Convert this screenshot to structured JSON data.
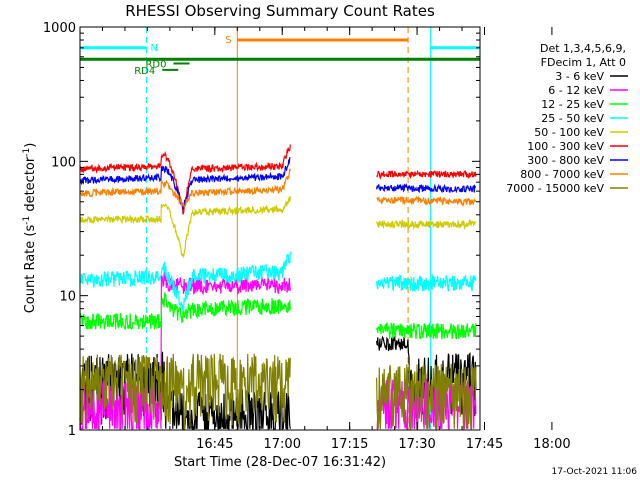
{
  "chart_data": {
    "type": "line",
    "title": "RHESSI Observing Summary Count Rates",
    "xlabel": "Start Time (28-Dec-07 16:31:42)",
    "ylabel_prefix": "Count Rate (s",
    "ylabel_sup1": "-1",
    "ylabel_mid": " detector",
    "ylabel_sup2": "-1",
    "ylabel_suffix": ")",
    "y_scale": "log",
    "ylim": [
      1,
      1000
    ],
    "xlim_min": [
      16.5,
      105.5
    ],
    "x_ticks": [
      {
        "min": 30,
        "label": "16:45"
      },
      {
        "min": 45,
        "label": "17:00"
      },
      {
        "min": 60,
        "label": "17:15"
      },
      {
        "min": 75,
        "label": "17:30"
      },
      {
        "min": 90,
        "label": "17:45"
      },
      {
        "min": 105,
        "label": "18:00"
      }
    ],
    "y_ticks": [
      {
        "value": 1,
        "label": "1"
      },
      {
        "value": 10,
        "label": "10"
      },
      {
        "value": 100,
        "label": "100"
      },
      {
        "value": 1000,
        "label": "1000"
      }
    ],
    "legend_header": [
      "Det 1,3,4,5,6,9,",
      "FDecim 1, Att 0"
    ],
    "series": [
      {
        "name": "3 - 6 keV",
        "color": "#000000",
        "values": [
          [
            0,
            2.4
          ],
          [
            18,
            2.4
          ],
          [
            18.5,
            3.0
          ],
          [
            19,
            1.3
          ],
          [
            47,
            1.3
          ],
          [
            47.5,
            2.4
          ],
          [
            47.8,
            4.5
          ],
          [
            73,
            4.5
          ],
          [
            73.5,
            2.0
          ],
          [
            77,
            2.4
          ],
          [
            88,
            2.4
          ]
        ]
      },
      {
        "name": "6 - 12 keV",
        "color": "#ff00ff",
        "values": [
          [
            0,
            1.5
          ],
          [
            18,
            1.5
          ],
          [
            18.1,
            13
          ],
          [
            19,
            14
          ],
          [
            19.5,
            12
          ],
          [
            47,
            12
          ],
          [
            47.5,
            13.5
          ],
          [
            48.5,
            14
          ],
          [
            49.5,
            12
          ],
          [
            52,
            1.5
          ],
          [
            62,
            1.5
          ],
          [
            64,
            1.6
          ],
          [
            88,
            1.6
          ]
        ]
      },
      {
        "name": "12 - 25 keV",
        "color": "#00ff00",
        "values": [
          [
            0,
            6.5
          ],
          [
            18,
            6.5
          ],
          [
            18.1,
            9
          ],
          [
            19,
            9.5
          ],
          [
            19.5,
            8.5
          ],
          [
            23,
            7
          ],
          [
            25,
            8
          ],
          [
            47,
            8.5
          ],
          [
            47.5,
            14
          ],
          [
            48.5,
            13
          ],
          [
            49.5,
            8
          ],
          [
            52,
            6
          ],
          [
            62,
            6
          ],
          [
            64,
            5.5
          ],
          [
            88,
            5.5
          ]
        ]
      },
      {
        "name": "25 - 50 keV",
        "color": "#00ffff",
        "values": [
          [
            0,
            13.5
          ],
          [
            18,
            13.5
          ],
          [
            18.1,
            15
          ],
          [
            19,
            16
          ],
          [
            19.5,
            14
          ],
          [
            23,
            8
          ],
          [
            25,
            14
          ],
          [
            45,
            15
          ],
          [
            46.5,
            19
          ],
          [
            47,
            19
          ],
          [
            47.5,
            17.5
          ],
          [
            48.5,
            16.5
          ],
          [
            49.5,
            13
          ],
          [
            52,
            13
          ],
          [
            62,
            13
          ],
          [
            64,
            12.5
          ],
          [
            88,
            12.5
          ]
        ]
      },
      {
        "name": "50 - 100 keV",
        "color": "#cccc00",
        "values": [
          [
            0,
            37
          ],
          [
            18,
            37
          ],
          [
            18.1,
            46
          ],
          [
            19,
            46
          ],
          [
            19.5,
            45
          ],
          [
            23,
            18
          ],
          [
            25,
            42
          ],
          [
            45,
            44
          ],
          [
            46.5,
            52
          ],
          [
            47,
            52
          ],
          [
            47.5,
            48
          ],
          [
            48.5,
            46
          ],
          [
            49.5,
            38
          ],
          [
            52,
            36
          ],
          [
            62,
            36
          ],
          [
            64,
            34
          ],
          [
            88,
            34
          ]
        ]
      },
      {
        "name": "100 - 300 keV",
        "color": "#ff0000",
        "values": [
          [
            0,
            88
          ],
          [
            18,
            92
          ],
          [
            18.1,
            110
          ],
          [
            19,
            110
          ],
          [
            19.5,
            105
          ],
          [
            23,
            40
          ],
          [
            25,
            88
          ],
          [
            45,
            92
          ],
          [
            46.5,
            125
          ],
          [
            47,
            130
          ],
          [
            47.5,
            120
          ],
          [
            48.5,
            115
          ],
          [
            49.5,
            90
          ],
          [
            52,
            88
          ],
          [
            62,
            84
          ],
          [
            64,
            80
          ],
          [
            88,
            80
          ]
        ]
      },
      {
        "name": "300 - 800 keV",
        "color": "#0000ff",
        "values": [
          [
            0,
            72
          ],
          [
            18,
            76
          ],
          [
            18.1,
            88
          ],
          [
            19,
            88
          ],
          [
            19.5,
            85
          ],
          [
            23,
            45
          ],
          [
            25,
            73
          ],
          [
            45,
            77
          ],
          [
            46.5,
            100
          ],
          [
            47,
            108
          ],
          [
            47.5,
            100
          ],
          [
            48.5,
            95
          ],
          [
            49.5,
            70
          ],
          [
            52,
            70
          ],
          [
            62,
            66
          ],
          [
            64,
            64
          ],
          [
            88,
            62
          ]
        ]
      },
      {
        "name": "800 - 7000 keV",
        "color": "#ff8000",
        "values": [
          [
            0,
            58
          ],
          [
            18,
            60
          ],
          [
            18.1,
            68
          ],
          [
            19,
            68
          ],
          [
            19.5,
            66
          ],
          [
            23,
            47
          ],
          [
            25,
            58
          ],
          [
            45,
            62
          ],
          [
            46.5,
            80
          ],
          [
            47,
            90
          ],
          [
            47.5,
            82
          ],
          [
            48.5,
            78
          ],
          [
            49.5,
            60
          ],
          [
            52,
            58
          ],
          [
            62,
            54
          ],
          [
            64,
            52
          ],
          [
            88,
            50
          ]
        ]
      },
      {
        "name": "7000 - 15000 keV",
        "color": "#808000",
        "values": [
          [
            0,
            2.4
          ],
          [
            23,
            2.4
          ],
          [
            23.1,
            1.2
          ],
          [
            25,
            2.4
          ],
          [
            47,
            2.4
          ],
          [
            47.5,
            2.0
          ],
          [
            88,
            2.0
          ]
        ]
      }
    ],
    "flags": {
      "saa": {
        "label": "S",
        "color": "#ff8000",
        "start": 51.5,
        "end": 89.5
      },
      "night": {
        "label": "N",
        "color": "#00ffff",
        "segments": [
          [
            16.5,
            31.3
          ],
          [
            94.5,
            105.5
          ]
        ]
      },
      "decimation": {
        "color": "#008000",
        "level": 575
      },
      "attenuator_labels": [
        {
          "label": "RD4",
          "x": 34.8,
          "y": 480
        },
        {
          "label": "RD0",
          "x": 37.3,
          "y": 535
        }
      ]
    },
    "timestamp": "17-Oct-2021 11:06"
  }
}
